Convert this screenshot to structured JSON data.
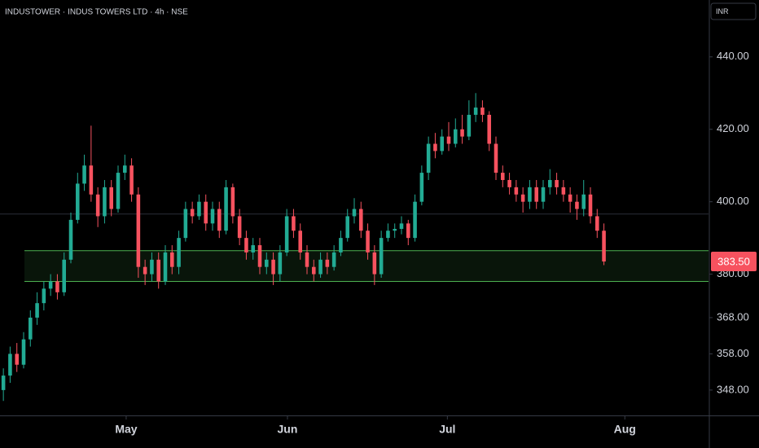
{
  "chart_data": {
    "type": "candlestick",
    "title": "INDUSTOWER · INDUS TOWERS LTD · 4h · NSE",
    "currency": "INR",
    "up_color": "#22ab94",
    "down_color": "#f7525f",
    "open": [
      348,
      352,
      358,
      355,
      362,
      368,
      372,
      376,
      378,
      375,
      384,
      395,
      405,
      410,
      402,
      396,
      404,
      398,
      408,
      410,
      402,
      382,
      380,
      384,
      378,
      386,
      382,
      390,
      398,
      396,
      400,
      394,
      398,
      392,
      404,
      396,
      390,
      386,
      388,
      382,
      384,
      380,
      386,
      396,
      392,
      386,
      382,
      380,
      384,
      382,
      386,
      390,
      396,
      398,
      392,
      386,
      380,
      390,
      392,
      392.5,
      394,
      390,
      400,
      408,
      416,
      414,
      418,
      416,
      420,
      418,
      424,
      426,
      424,
      416,
      408,
      406,
      404,
      402,
      400,
      404,
      400,
      404,
      406,
      404,
      402,
      400,
      398,
      402,
      396,
      392
    ],
    "high": [
      354,
      360,
      361,
      364,
      370,
      375,
      378,
      380,
      380,
      386,
      397,
      408,
      413,
      421,
      404,
      406,
      406,
      410,
      413,
      412,
      404,
      384,
      386,
      386,
      388,
      388,
      392,
      400,
      400,
      402,
      402,
      400,
      400,
      406,
      405,
      398,
      392,
      390,
      390,
      386,
      386,
      388,
      398,
      398,
      394,
      388,
      384,
      386,
      386,
      388,
      392,
      398,
      401,
      400,
      394,
      388,
      392,
      394,
      394,
      396,
      395,
      402,
      410,
      418,
      419,
      420,
      422,
      423,
      424,
      428,
      430,
      428,
      425,
      418,
      410,
      408,
      406,
      404,
      406,
      406,
      406,
      409,
      408,
      406,
      404,
      402,
      406,
      404,
      398,
      394
    ],
    "low": [
      345,
      350,
      353,
      354,
      360,
      366,
      370,
      374,
      373,
      374,
      383,
      394,
      403,
      400,
      393,
      394,
      396,
      397,
      406,
      400,
      379,
      377,
      378,
      376,
      377,
      380,
      380,
      389,
      394,
      395,
      392,
      392,
      390,
      391,
      394,
      388,
      384,
      384,
      380,
      380,
      377,
      378,
      385,
      390,
      384,
      380,
      378,
      379,
      380,
      381,
      385,
      389,
      394,
      390,
      384,
      377,
      379,
      389,
      390,
      391,
      388,
      389,
      399,
      406,
      412,
      413,
      414,
      415,
      416,
      417,
      422,
      422,
      414,
      406,
      404,
      402,
      400,
      397,
      398,
      398,
      398,
      402,
      402,
      400,
      397,
      395,
      396,
      394,
      390,
      382.5
    ],
    "close": [
      352,
      358,
      355,
      362,
      368,
      372,
      376,
      378,
      375,
      384,
      395,
      405,
      410,
      402,
      396,
      404,
      398,
      408,
      410,
      402,
      382,
      380,
      384,
      378,
      386,
      382,
      390,
      398,
      396,
      400,
      394,
      398,
      392,
      404,
      396,
      390,
      386,
      388,
      382,
      384,
      380,
      386,
      396,
      392,
      386,
      382,
      380,
      384,
      382,
      386,
      390,
      396,
      398,
      392,
      386,
      380,
      390,
      392,
      392.5,
      394,
      390,
      400,
      408,
      416,
      414,
      418,
      416,
      420,
      418,
      424,
      426,
      424,
      416,
      408,
      406,
      404,
      402,
      400,
      404,
      400,
      404,
      406,
      404,
      402,
      400,
      398,
      402,
      396,
      392,
      383.5
    ],
    "xlim": [
      -0.5,
      104.5
    ],
    "xticks": [
      {
        "value": 18.2,
        "label": "May"
      },
      {
        "value": 42.1,
        "label": "Jun"
      },
      {
        "value": 65.8,
        "label": "Jul"
      },
      {
        "value": 92.1,
        "label": "Aug"
      }
    ],
    "ylim": [
      341,
      455.7
    ],
    "yticks": [
      {
        "value": 440,
        "label": "440.00"
      },
      {
        "value": 420,
        "label": "420.00"
      },
      {
        "value": 400,
        "label": "400.00"
      },
      {
        "value": 380,
        "label": "380.00"
      },
      {
        "value": 368,
        "label": "368.00"
      },
      {
        "value": 358,
        "label": "358.00"
      },
      {
        "value": 348,
        "label": "348.00"
      }
    ],
    "zone": [
      378,
      386.5
    ],
    "zone_color": "#4caf50",
    "hline": 396.6,
    "last_price": {
      "value": 383.5,
      "label": "383.50"
    }
  }
}
